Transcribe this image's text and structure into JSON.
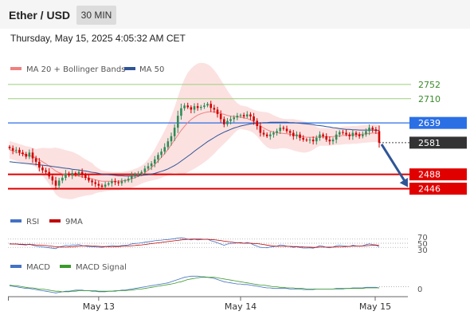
{
  "header": {
    "title": "Ether / USD",
    "timeframe": "30 MIN",
    "timestamp": "Thursday, May 15, 2025 4:05:32 AM CET"
  },
  "colors": {
    "bull_candle": "#2e8b57",
    "bear_candle": "#d00000",
    "ma20": "#f08080",
    "ma50": "#2f5597",
    "bollinger_fill": "#fbd7d7",
    "resistance": "#9bcf7a",
    "current_line": "#2b6fe5",
    "support": "#e00000",
    "arrow": "#2f5597",
    "rsi": "#4472c4",
    "rsi_ma": "#c00000",
    "macd": "#4472c4",
    "macd_signal": "#3a9a2a",
    "current_price_label": "#333333"
  },
  "chart_data": [
    {
      "type": "candlestick",
      "legend": [
        "MA 20 + Bollinger Bands",
        "MA 50"
      ],
      "x_labels": [
        "May 13",
        "May 14",
        "May 15"
      ],
      "ylim": [
        2410,
        2775
      ],
      "levels": [
        {
          "value": 2752,
          "label": "2752",
          "kind": "resistance"
        },
        {
          "value": 2710,
          "label": "2710",
          "kind": "resistance"
        },
        {
          "value": 2639,
          "label": "2639",
          "kind": "pivot"
        },
        {
          "value": 2581,
          "label": "2581",
          "kind": "current"
        },
        {
          "value": 2488,
          "label": "2488",
          "kind": "support"
        },
        {
          "value": 2446,
          "label": "2446",
          "kind": "support"
        }
      ],
      "close": [
        2565,
        2558,
        2560,
        2552,
        2548,
        2540,
        2552,
        2535,
        2525,
        2508,
        2500,
        2495,
        2482,
        2470,
        2455,
        2470,
        2478,
        2490,
        2485,
        2492,
        2490,
        2495,
        2486,
        2478,
        2470,
        2465,
        2460,
        2455,
        2452,
        2458,
        2462,
        2468,
        2465,
        2462,
        2468,
        2470,
        2475,
        2485,
        2488,
        2490,
        2495,
        2505,
        2512,
        2520,
        2532,
        2545,
        2555,
        2568,
        2585,
        2600,
        2625,
        2660,
        2682,
        2690,
        2685,
        2678,
        2688,
        2683,
        2686,
        2690,
        2695,
        2683,
        2678,
        2665,
        2650,
        2635,
        2645,
        2650,
        2655,
        2660,
        2662,
        2658,
        2664,
        2658,
        2645,
        2630,
        2610,
        2605,
        2600,
        2605,
        2610,
        2615,
        2625,
        2622,
        2615,
        2610,
        2600,
        2605,
        2595,
        2590,
        2588,
        2590,
        2585,
        2595,
        2605,
        2600,
        2590,
        2585,
        2590,
        2605,
        2612,
        2610,
        2605,
        2600,
        2610,
        2605,
        2600,
        2605,
        2615,
        2625,
        2620,
        2615,
        2581
      ],
      "series": [
        {
          "name": "MA 20",
          "values": [
            2560,
            2557,
            2554,
            2551,
            2548,
            2545,
            2543,
            2540,
            2536,
            2531,
            2525,
            2519,
            2512,
            2505,
            2498,
            2493,
            2490,
            2488,
            2486,
            2485,
            2484,
            2483,
            2481,
            2479,
            2477,
            2475,
            2472,
            2470,
            2468,
            2468,
            2468,
            2468,
            2468,
            2468,
            2469,
            2470,
            2472,
            2475,
            2478,
            2482,
            2487,
            2493,
            2500,
            2508,
            2517,
            2527,
            2538,
            2549,
            2561,
            2575,
            2589,
            2603,
            2617,
            2629,
            2640,
            2649,
            2656,
            2662,
            2666,
            2669,
            2671,
            2672,
            2671,
            2670,
            2667,
            2664,
            2661,
            2659,
            2658,
            2657,
            2656,
            2654,
            2652,
            2648,
            2643,
            2637,
            2630,
            2624,
            2619,
            2615,
            2612,
            2610,
            2609,
            2608,
            2607,
            2606,
            2604,
            2602,
            2600,
            2598,
            2597,
            2597,
            2597,
            2597,
            2598,
            2598,
            2598,
            2598,
            2599,
            2600,
            2601,
            2602,
            2603,
            2603,
            2604,
            2604,
            2605,
            2606,
            2607,
            2608,
            2609,
            2609,
            2608
          ]
        },
        {
          "name": "MA 50",
          "values": [
            2525,
            2524,
            2523,
            2522,
            2521,
            2520,
            2519,
            2518,
            2517,
            2516,
            2515,
            2514,
            2513,
            2511,
            2510,
            2509,
            2507,
            2506,
            2505,
            2503,
            2502,
            2501,
            2499,
            2498,
            2496,
            2494,
            2493,
            2491,
            2489,
            2488,
            2487,
            2486,
            2485,
            2484,
            2484,
            2483,
            2483,
            2483,
            2483,
            2484,
            2485,
            2486,
            2487,
            2489,
            2491,
            2494,
            2497,
            2500,
            2504,
            2509,
            2514,
            2520,
            2527,
            2534,
            2541,
            2548,
            2556,
            2563,
            2570,
            2577,
            2584,
            2590,
            2596,
            2602,
            2607,
            2612,
            2616,
            2620,
            2624,
            2627,
            2630,
            2632,
            2634,
            2636,
            2637,
            2638,
            2639,
            2640,
            2640,
            2641,
            2641,
            2641,
            2641,
            2641,
            2641,
            2640,
            2640,
            2639,
            2638,
            2637,
            2636,
            2635,
            2634,
            2632,
            2631,
            2630,
            2628,
            2627,
            2625,
            2624,
            2622,
            2621,
            2620,
            2620,
            2619,
            2619,
            2618,
            2618,
            2618,
            2618,
            2618,
            2618,
            2617
          ]
        }
      ]
    },
    {
      "type": "line",
      "legend": [
        "RSI",
        "9MA"
      ],
      "y_ticks": [
        "70",
        "50",
        "30"
      ],
      "ylim": [
        0,
        100
      ],
      "series": [
        {
          "name": "RSI",
          "values": [
            48,
            46,
            47,
            44,
            43,
            41,
            46,
            40,
            37,
            33,
            32,
            30,
            28,
            26,
            24,
            32,
            35,
            40,
            38,
            42,
            41,
            44,
            39,
            36,
            34,
            33,
            32,
            31,
            30,
            34,
            36,
            39,
            37,
            36,
            39,
            40,
            42,
            47,
            49,
            50,
            52,
            55,
            57,
            59,
            62,
            64,
            65,
            67,
            68,
            70,
            72,
            75,
            76,
            74,
            70,
            66,
            70,
            66,
            68,
            69,
            70,
            62,
            58,
            52,
            46,
            40,
            46,
            48,
            50,
            52,
            53,
            50,
            54,
            50,
            42,
            36,
            30,
            29,
            28,
            32,
            34,
            36,
            42,
            40,
            36,
            34,
            30,
            33,
            29,
            27,
            27,
            28,
            26,
            32,
            38,
            35,
            30,
            28,
            31,
            38,
            40,
            38,
            36,
            34,
            40,
            37,
            35,
            38,
            43,
            47,
            44,
            42,
            31
          ]
        },
        {
          "name": "9MA",
          "values": [
            46,
            46,
            46,
            45,
            45,
            44,
            44,
            43,
            42,
            41,
            40,
            39,
            37,
            35,
            33,
            32,
            31,
            31,
            32,
            33,
            34,
            36,
            37,
            38,
            38,
            37,
            36,
            35,
            34,
            34,
            33,
            33,
            34,
            34,
            35,
            36,
            37,
            38,
            39,
            41,
            42,
            44,
            46,
            48,
            50,
            52,
            54,
            56,
            58,
            60,
            62,
            64,
            66,
            68,
            69,
            70,
            70,
            70,
            70,
            69,
            69,
            68,
            67,
            65,
            63,
            60,
            58,
            56,
            54,
            52,
            51,
            50,
            50,
            50,
            49,
            48,
            46,
            44,
            41,
            39,
            37,
            35,
            35,
            35,
            35,
            35,
            34,
            34,
            33,
            32,
            31,
            31,
            30,
            30,
            31,
            31,
            31,
            31,
            31,
            32,
            33,
            33,
            34,
            35,
            36,
            36,
            36,
            37,
            38,
            39,
            40,
            41,
            40
          ]
        }
      ]
    },
    {
      "type": "line",
      "legend": [
        "MACD",
        "MACD Signal"
      ],
      "y_ticks": [
        "0"
      ],
      "ylim": [
        -12,
        28
      ],
      "series": [
        {
          "name": "MACD",
          "values": [
            2,
            1,
            0,
            -1,
            -2,
            -3,
            -3,
            -4,
            -5,
            -6,
            -7,
            -8,
            -9,
            -10,
            -11,
            -10,
            -9,
            -8,
            -8,
            -7,
            -6,
            -6,
            -6,
            -7,
            -7,
            -8,
            -8,
            -9,
            -9,
            -9,
            -8,
            -8,
            -7,
            -7,
            -6,
            -6,
            -5,
            -4,
            -3,
            -2,
            -1,
            0,
            1,
            2,
            3,
            4,
            5,
            6,
            7,
            9,
            11,
            13,
            15,
            17,
            18,
            19,
            19,
            19,
            18,
            18,
            17,
            16,
            15,
            13,
            11,
            9,
            8,
            7,
            6,
            5,
            5,
            4,
            4,
            3,
            2,
            1,
            0,
            -1,
            -2,
            -2,
            -3,
            -3,
            -3,
            -3,
            -3,
            -4,
            -4,
            -4,
            -4,
            -5,
            -5,
            -5,
            -5,
            -4,
            -4,
            -4,
            -4,
            -4,
            -4,
            -3,
            -3,
            -3,
            -3,
            -3,
            -2,
            -2,
            -2,
            -2,
            -1,
            -1,
            -1,
            -1,
            -2
          ]
        },
        {
          "name": "MACD Signal",
          "values": [
            3,
            2,
            2,
            1,
            0,
            -1,
            -2,
            -2,
            -3,
            -4,
            -4,
            -5,
            -6,
            -7,
            -8,
            -8,
            -9,
            -9,
            -9,
            -8,
            -8,
            -7,
            -7,
            -7,
            -7,
            -7,
            -7,
            -8,
            -8,
            -8,
            -8,
            -8,
            -8,
            -7,
            -7,
            -7,
            -6,
            -6,
            -5,
            -4,
            -4,
            -3,
            -2,
            -1,
            0,
            1,
            2,
            3,
            4,
            5,
            6,
            8,
            9,
            11,
            13,
            14,
            15,
            16,
            17,
            17,
            17,
            17,
            17,
            16,
            15,
            14,
            13,
            12,
            11,
            10,
            9,
            8,
            7,
            6,
            5,
            4,
            3,
            3,
            2,
            1,
            0,
            0,
            -1,
            -1,
            -2,
            -2,
            -2,
            -3,
            -3,
            -3,
            -4,
            -4,
            -4,
            -4,
            -4,
            -4,
            -4,
            -4,
            -4,
            -4,
            -4,
            -4,
            -3,
            -3,
            -3,
            -3,
            -3,
            -3,
            -2,
            -2,
            -2,
            -2,
            -2
          ]
        }
      ]
    }
  ]
}
